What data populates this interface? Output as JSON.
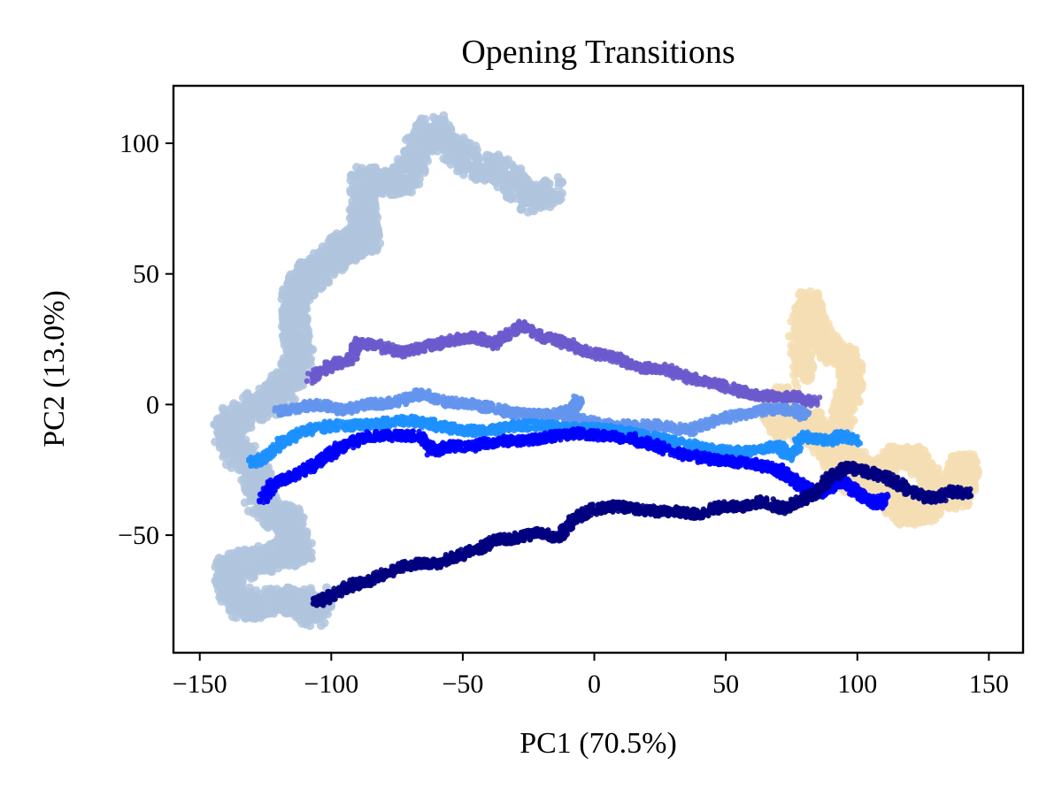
{
  "chart_data": {
    "type": "scatter",
    "title": "Opening Transitions",
    "xlabel": "PC1 (70.5%)",
    "ylabel": "PC2 (13.0%)",
    "xlim": [
      -160,
      163
    ],
    "ylim": [
      -95,
      122
    ],
    "xticks": [
      -150,
      -100,
      -50,
      0,
      50,
      100,
      150
    ],
    "xtick_labels": [
      "−150",
      "−100",
      "−50",
      "0",
      "50",
      "100",
      "150"
    ],
    "yticks": [
      -50,
      0,
      50,
      100
    ],
    "ytick_labels": [
      "−50",
      "0",
      "50",
      "100"
    ],
    "grid": false,
    "legend": "none",
    "series": [
      {
        "color": "#b0c4de",
        "spread": 5.0,
        "points": [
          [
            -15,
            82
          ],
          [
            -25,
            78
          ],
          [
            -35,
            90
          ],
          [
            -48,
            92
          ],
          [
            -55,
            100
          ],
          [
            -62,
            106
          ],
          [
            -68,
            95
          ],
          [
            -72,
            86
          ],
          [
            -80,
            85
          ],
          [
            -88,
            86
          ],
          [
            -88,
            72
          ],
          [
            -86,
            64
          ],
          [
            -90,
            62
          ],
          [
            -96,
            60
          ],
          [
            -100,
            55
          ],
          [
            -108,
            50
          ],
          [
            -112,
            46
          ],
          [
            -114,
            38
          ],
          [
            -114,
            28
          ],
          [
            -112,
            18
          ],
          [
            -116,
            10
          ],
          [
            -120,
            4
          ],
          [
            -124,
            1
          ],
          [
            -132,
            -2
          ],
          [
            -140,
            -8
          ],
          [
            -136,
            -18
          ],
          [
            -128,
            -25
          ],
          [
            -128,
            -35
          ],
          [
            -122,
            -42
          ],
          [
            -116,
            -44
          ],
          [
            -114,
            -52
          ],
          [
            -112,
            -56
          ],
          [
            -120,
            -58
          ],
          [
            -130,
            -60
          ],
          [
            -140,
            -64
          ],
          [
            -138,
            -72
          ],
          [
            -132,
            -78
          ],
          [
            -122,
            -75
          ],
          [
            -114,
            -75
          ],
          [
            -108,
            -80
          ],
          [
            -104,
            -74
          ]
        ]
      },
      {
        "color": "#f5deb3",
        "spread": 4.0,
        "points": [
          [
            80,
            10
          ],
          [
            78,
            25
          ],
          [
            82,
            40
          ],
          [
            84,
            30
          ],
          [
            90,
            20
          ],
          [
            96,
            18
          ],
          [
            98,
            10
          ],
          [
            96,
            0
          ],
          [
            92,
            -10
          ],
          [
            90,
            -18
          ],
          [
            100,
            -22
          ],
          [
            108,
            -28
          ],
          [
            112,
            -36
          ],
          [
            118,
            -42
          ],
          [
            124,
            -42
          ],
          [
            130,
            -38
          ],
          [
            136,
            -30
          ],
          [
            140,
            -22
          ],
          [
            142,
            -26
          ],
          [
            140,
            -34
          ],
          [
            134,
            -36
          ],
          [
            128,
            -30
          ],
          [
            122,
            -20
          ],
          [
            114,
            -20
          ],
          [
            106,
            -28
          ],
          [
            98,
            -30
          ],
          [
            92,
            -24
          ],
          [
            86,
            -14
          ],
          [
            82,
            -6
          ],
          [
            72,
            -10
          ],
          [
            68,
            -4
          ],
          [
            72,
            4
          ]
        ]
      },
      {
        "color": "#6a5acd",
        "spread": 1.8,
        "points": [
          [
            -108,
            10
          ],
          [
            -100,
            15
          ],
          [
            -92,
            18
          ],
          [
            -90,
            24
          ],
          [
            -84,
            23
          ],
          [
            -74,
            20
          ],
          [
            -64,
            22
          ],
          [
            -56,
            24
          ],
          [
            -46,
            26
          ],
          [
            -38,
            23
          ],
          [
            -28,
            30
          ],
          [
            -20,
            26
          ],
          [
            -12,
            24
          ],
          [
            -2,
            20
          ],
          [
            8,
            18
          ],
          [
            18,
            14
          ],
          [
            26,
            14
          ],
          [
            36,
            10
          ],
          [
            46,
            8
          ],
          [
            56,
            5
          ],
          [
            66,
            3
          ],
          [
            76,
            3
          ],
          [
            84,
            1
          ]
        ]
      },
      {
        "color": "#6495ed",
        "spread": 1.8,
        "points": [
          [
            -120,
            -3
          ],
          [
            -112,
            -1
          ],
          [
            -104,
            0
          ],
          [
            -96,
            -2
          ],
          [
            -86,
            0
          ],
          [
            -76,
            1
          ],
          [
            -66,
            4
          ],
          [
            -56,
            1
          ],
          [
            -46,
            0
          ],
          [
            -36,
            -2
          ],
          [
            -26,
            -4
          ],
          [
            -16,
            -4
          ],
          [
            -8,
            -2
          ],
          [
            -6,
            2
          ],
          [
            -10,
            -6
          ],
          [
            -4,
            -6
          ],
          [
            6,
            -8
          ],
          [
            16,
            -8
          ],
          [
            26,
            -8
          ],
          [
            36,
            -10
          ],
          [
            46,
            -6
          ],
          [
            56,
            -4
          ],
          [
            66,
            -2
          ],
          [
            76,
            -2
          ],
          [
            80,
            -4
          ]
        ]
      },
      {
        "color": "#1e90ff",
        "spread": 1.8,
        "points": [
          [
            -130,
            -22
          ],
          [
            -124,
            -20
          ],
          [
            -118,
            -14
          ],
          [
            -110,
            -10
          ],
          [
            -100,
            -8
          ],
          [
            -90,
            -8
          ],
          [
            -80,
            -7
          ],
          [
            -70,
            -6
          ],
          [
            -60,
            -8
          ],
          [
            -50,
            -10
          ],
          [
            -40,
            -10
          ],
          [
            -30,
            -8
          ],
          [
            -20,
            -8
          ],
          [
            -10,
            -9
          ],
          [
            0,
            -9
          ],
          [
            10,
            -10
          ],
          [
            20,
            -12
          ],
          [
            30,
            -14
          ],
          [
            40,
            -16
          ],
          [
            50,
            -18
          ],
          [
            60,
            -18
          ],
          [
            70,
            -16
          ],
          [
            74,
            -20
          ],
          [
            80,
            -12
          ],
          [
            88,
            -14
          ],
          [
            94,
            -12
          ],
          [
            100,
            -14
          ]
        ]
      },
      {
        "color": "#0000ff",
        "spread": 1.8,
        "points": [
          [
            -126,
            -36
          ],
          [
            -122,
            -30
          ],
          [
            -116,
            -28
          ],
          [
            -108,
            -24
          ],
          [
            -102,
            -20
          ],
          [
            -96,
            -16
          ],
          [
            -86,
            -12
          ],
          [
            -76,
            -12
          ],
          [
            -66,
            -12
          ],
          [
            -62,
            -18
          ],
          [
            -56,
            -16
          ],
          [
            -46,
            -16
          ],
          [
            -36,
            -14
          ],
          [
            -26,
            -14
          ],
          [
            -16,
            -12
          ],
          [
            -6,
            -11
          ],
          [
            4,
            -12
          ],
          [
            14,
            -13
          ],
          [
            24,
            -16
          ],
          [
            34,
            -19
          ],
          [
            44,
            -21
          ],
          [
            54,
            -22
          ],
          [
            62,
            -23
          ],
          [
            70,
            -25
          ],
          [
            74,
            -28
          ],
          [
            80,
            -32
          ],
          [
            86,
            -34
          ],
          [
            92,
            -30
          ],
          [
            96,
            -30
          ],
          [
            100,
            -34
          ],
          [
            104,
            -36
          ],
          [
            108,
            -38
          ],
          [
            110,
            -36
          ]
        ]
      },
      {
        "color": "#000080",
        "spread": 1.8,
        "points": [
          [
            -106,
            -76
          ],
          [
            -100,
            -73
          ],
          [
            -92,
            -69
          ],
          [
            -84,
            -67
          ],
          [
            -76,
            -63
          ],
          [
            -68,
            -61
          ],
          [
            -60,
            -61
          ],
          [
            -52,
            -58
          ],
          [
            -44,
            -55
          ],
          [
            -38,
            -52
          ],
          [
            -30,
            -51
          ],
          [
            -22,
            -49
          ],
          [
            -14,
            -51
          ],
          [
            -8,
            -44
          ],
          [
            0,
            -40
          ],
          [
            8,
            -39
          ],
          [
            16,
            -40
          ],
          [
            24,
            -41
          ],
          [
            32,
            -41
          ],
          [
            40,
            -42
          ],
          [
            48,
            -39
          ],
          [
            56,
            -39
          ],
          [
            64,
            -37
          ],
          [
            72,
            -40
          ],
          [
            78,
            -37
          ],
          [
            84,
            -34
          ],
          [
            90,
            -28
          ],
          [
            96,
            -24
          ],
          [
            104,
            -26
          ],
          [
            112,
            -28
          ],
          [
            118,
            -32
          ],
          [
            124,
            -35
          ],
          [
            130,
            -36
          ],
          [
            136,
            -33
          ],
          [
            142,
            -34
          ]
        ]
      }
    ]
  }
}
